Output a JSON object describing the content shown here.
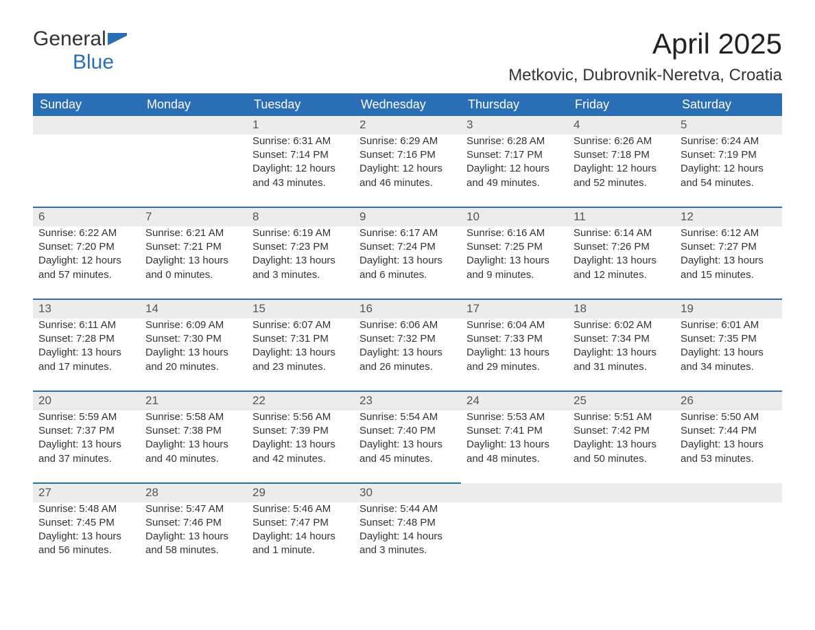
{
  "logo": {
    "word1": "General",
    "word2": "Blue"
  },
  "title": "April 2025",
  "location": "Metkovic, Dubrovnik-Neretva, Croatia",
  "colors": {
    "header_bg": "#2a6fb5",
    "header_text": "#ffffff",
    "daynum_bg": "#ececec",
    "row_border": "#2a6fb5",
    "logo_blue": "#2a6fb5"
  },
  "weekdays": [
    "Sunday",
    "Monday",
    "Tuesday",
    "Wednesday",
    "Thursday",
    "Friday",
    "Saturday"
  ],
  "weeks": [
    [
      null,
      null,
      {
        "n": "1",
        "sunrise": "6:31 AM",
        "sunset": "7:14 PM",
        "daylight": "12 hours and 43 minutes."
      },
      {
        "n": "2",
        "sunrise": "6:29 AM",
        "sunset": "7:16 PM",
        "daylight": "12 hours and 46 minutes."
      },
      {
        "n": "3",
        "sunrise": "6:28 AM",
        "sunset": "7:17 PM",
        "daylight": "12 hours and 49 minutes."
      },
      {
        "n": "4",
        "sunrise": "6:26 AM",
        "sunset": "7:18 PM",
        "daylight": "12 hours and 52 minutes."
      },
      {
        "n": "5",
        "sunrise": "6:24 AM",
        "sunset": "7:19 PM",
        "daylight": "12 hours and 54 minutes."
      }
    ],
    [
      {
        "n": "6",
        "sunrise": "6:22 AM",
        "sunset": "7:20 PM",
        "daylight": "12 hours and 57 minutes."
      },
      {
        "n": "7",
        "sunrise": "6:21 AM",
        "sunset": "7:21 PM",
        "daylight": "13 hours and 0 minutes."
      },
      {
        "n": "8",
        "sunrise": "6:19 AM",
        "sunset": "7:23 PM",
        "daylight": "13 hours and 3 minutes."
      },
      {
        "n": "9",
        "sunrise": "6:17 AM",
        "sunset": "7:24 PM",
        "daylight": "13 hours and 6 minutes."
      },
      {
        "n": "10",
        "sunrise": "6:16 AM",
        "sunset": "7:25 PM",
        "daylight": "13 hours and 9 minutes."
      },
      {
        "n": "11",
        "sunrise": "6:14 AM",
        "sunset": "7:26 PM",
        "daylight": "13 hours and 12 minutes."
      },
      {
        "n": "12",
        "sunrise": "6:12 AM",
        "sunset": "7:27 PM",
        "daylight": "13 hours and 15 minutes."
      }
    ],
    [
      {
        "n": "13",
        "sunrise": "6:11 AM",
        "sunset": "7:28 PM",
        "daylight": "13 hours and 17 minutes."
      },
      {
        "n": "14",
        "sunrise": "6:09 AM",
        "sunset": "7:30 PM",
        "daylight": "13 hours and 20 minutes."
      },
      {
        "n": "15",
        "sunrise": "6:07 AM",
        "sunset": "7:31 PM",
        "daylight": "13 hours and 23 minutes."
      },
      {
        "n": "16",
        "sunrise": "6:06 AM",
        "sunset": "7:32 PM",
        "daylight": "13 hours and 26 minutes."
      },
      {
        "n": "17",
        "sunrise": "6:04 AM",
        "sunset": "7:33 PM",
        "daylight": "13 hours and 29 minutes."
      },
      {
        "n": "18",
        "sunrise": "6:02 AM",
        "sunset": "7:34 PM",
        "daylight": "13 hours and 31 minutes."
      },
      {
        "n": "19",
        "sunrise": "6:01 AM",
        "sunset": "7:35 PM",
        "daylight": "13 hours and 34 minutes."
      }
    ],
    [
      {
        "n": "20",
        "sunrise": "5:59 AM",
        "sunset": "7:37 PM",
        "daylight": "13 hours and 37 minutes."
      },
      {
        "n": "21",
        "sunrise": "5:58 AM",
        "sunset": "7:38 PM",
        "daylight": "13 hours and 40 minutes."
      },
      {
        "n": "22",
        "sunrise": "5:56 AM",
        "sunset": "7:39 PM",
        "daylight": "13 hours and 42 minutes."
      },
      {
        "n": "23",
        "sunrise": "5:54 AM",
        "sunset": "7:40 PM",
        "daylight": "13 hours and 45 minutes."
      },
      {
        "n": "24",
        "sunrise": "5:53 AM",
        "sunset": "7:41 PM",
        "daylight": "13 hours and 48 minutes."
      },
      {
        "n": "25",
        "sunrise": "5:51 AM",
        "sunset": "7:42 PM",
        "daylight": "13 hours and 50 minutes."
      },
      {
        "n": "26",
        "sunrise": "5:50 AM",
        "sunset": "7:44 PM",
        "daylight": "13 hours and 53 minutes."
      }
    ],
    [
      {
        "n": "27",
        "sunrise": "5:48 AM",
        "sunset": "7:45 PM",
        "daylight": "13 hours and 56 minutes."
      },
      {
        "n": "28",
        "sunrise": "5:47 AM",
        "sunset": "7:46 PM",
        "daylight": "13 hours and 58 minutes."
      },
      {
        "n": "29",
        "sunrise": "5:46 AM",
        "sunset": "7:47 PM",
        "daylight": "14 hours and 1 minute."
      },
      {
        "n": "30",
        "sunrise": "5:44 AM",
        "sunset": "7:48 PM",
        "daylight": "14 hours and 3 minutes."
      },
      null,
      null,
      null
    ]
  ],
  "labels": {
    "sunrise": "Sunrise: ",
    "sunset": "Sunset: ",
    "daylight": "Daylight: "
  }
}
